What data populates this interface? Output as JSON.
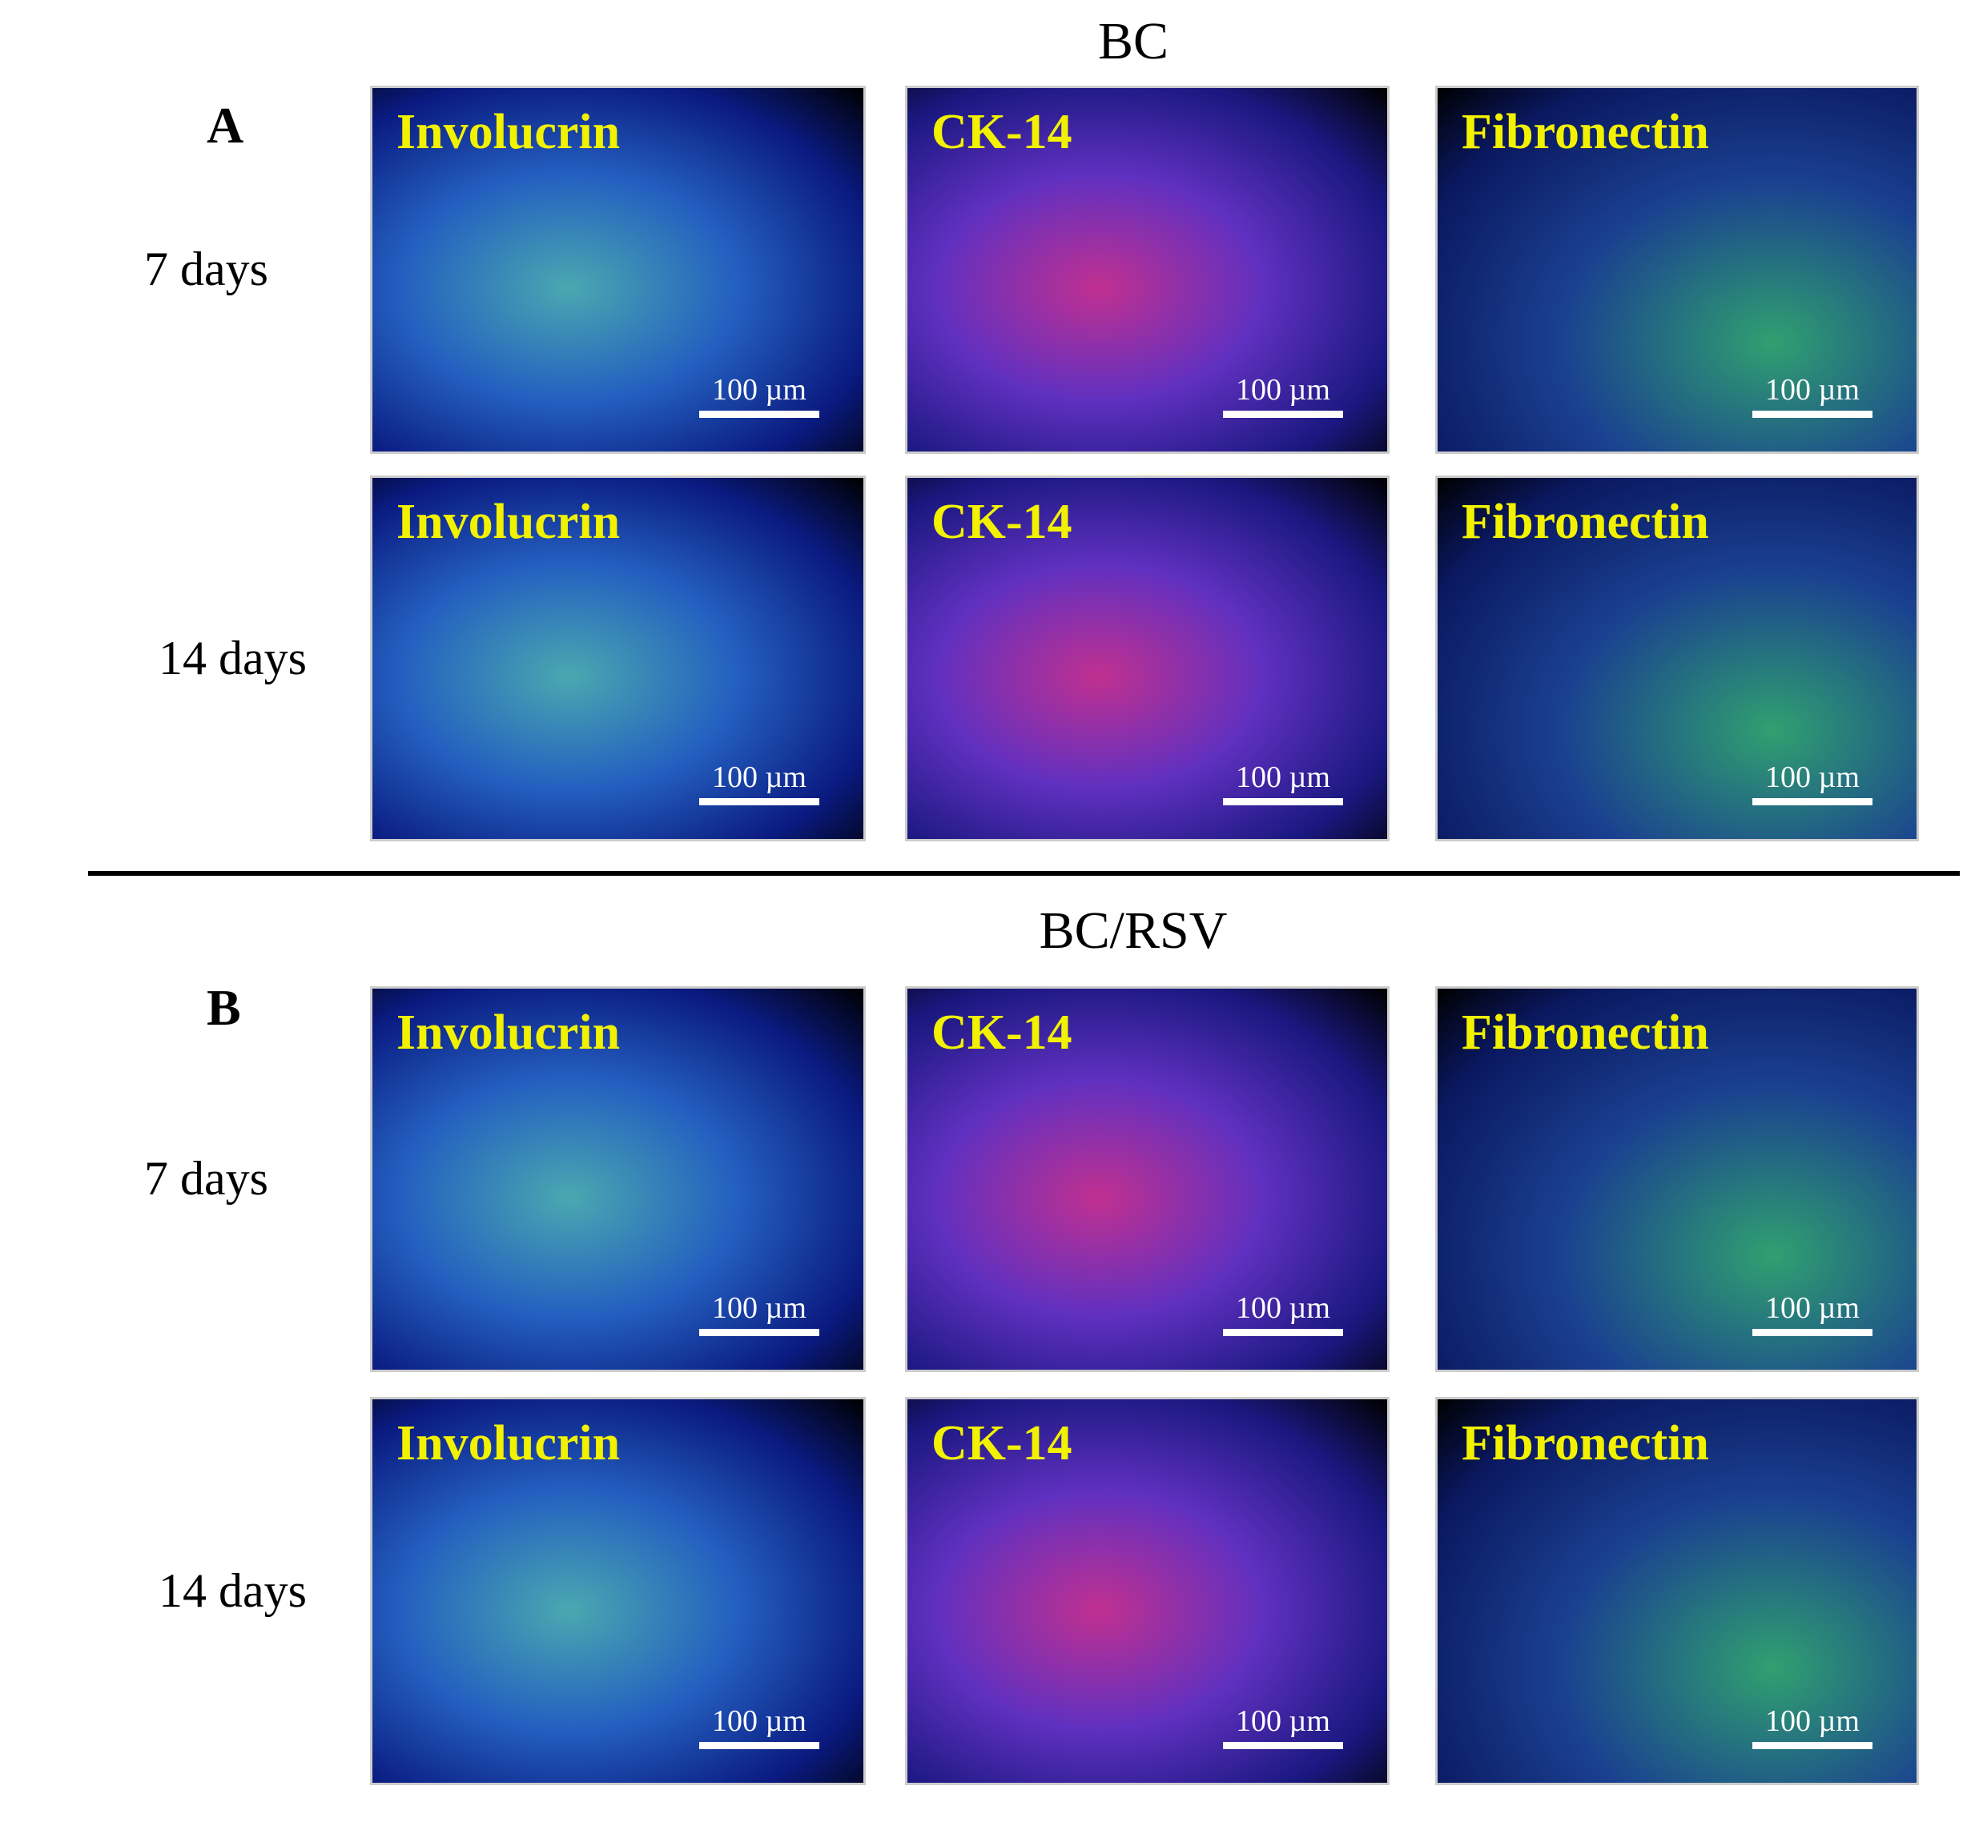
{
  "sections": [
    {
      "title": "BC",
      "letter": "A",
      "rows": [
        {
          "label": "7 days",
          "panels": [
            {
              "stain": "Involucrin",
              "scale": "100 µm"
            },
            {
              "stain": "CK-14",
              "scale": "100 µm"
            },
            {
              "stain": "Fibronectin",
              "scale": "100 µm"
            }
          ]
        },
        {
          "label": "14 days",
          "panels": [
            {
              "stain": "Involucrin",
              "scale": "100 µm"
            },
            {
              "stain": "CK-14",
              "scale": "100 µm"
            },
            {
              "stain": "Fibronectin",
              "scale": "100 µm"
            }
          ]
        }
      ]
    },
    {
      "title": "BC/RSV",
      "letter": "B",
      "rows": [
        {
          "label": "7 days",
          "panels": [
            {
              "stain": "Involucrin",
              "scale": "100 µm"
            },
            {
              "stain": "CK-14",
              "scale": "100 µm"
            },
            {
              "stain": "Fibronectin",
              "scale": "100 µm"
            }
          ]
        },
        {
          "label": "14 days",
          "panels": [
            {
              "stain": "Involucrin",
              "scale": "100 µm"
            },
            {
              "stain": "CK-14",
              "scale": "100 µm"
            },
            {
              "stain": "Fibronectin",
              "scale": "100 µm"
            }
          ]
        }
      ]
    }
  ]
}
